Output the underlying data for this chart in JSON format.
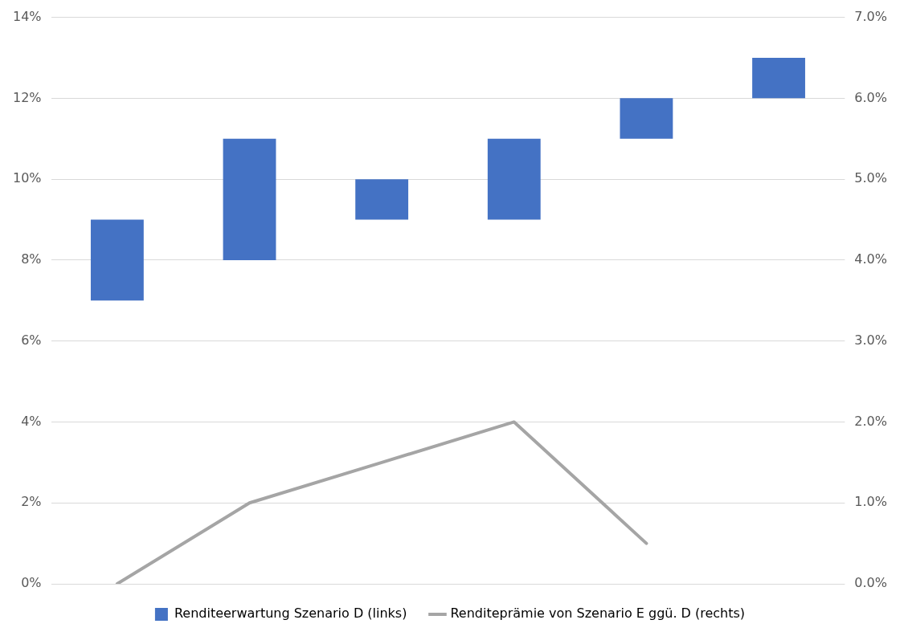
{
  "chart_data": {
    "type": "bar",
    "categories": [
      null,
      null,
      null,
      null,
      null,
      null
    ],
    "series": [
      {
        "name": "Renditeerwartung Szenario D (links)",
        "color": "#4472c4",
        "values": [
          2,
          3,
          1,
          2,
          1,
          1
        ],
        "base": [
          7,
          8,
          9,
          9,
          11,
          12
        ]
      },
      {
        "name": "Renditeprämie von Szenario E ggü. D (rechts)",
        "type": "line",
        "axis": "y2",
        "color": "#a5a5a5",
        "values": [
          0,
          1.0,
          1.5,
          2.0,
          0.5,
          null
        ]
      }
    ],
    "ylim": [
      0,
      14
    ],
    "yticks": [
      {
        "value": 0,
        "label": "0%"
      },
      {
        "value": 2,
        "label": "2%"
      },
      {
        "value": 4,
        "label": "4%"
      },
      {
        "value": 6,
        "label": "6%"
      },
      {
        "value": 8,
        "label": "8%"
      },
      {
        "value": 10,
        "label": "10%"
      },
      {
        "value": 12,
        "label": "12%"
      },
      {
        "value": 14,
        "label": "14%"
      }
    ],
    "y2lim": [
      0,
      7
    ],
    "y2ticks": [
      {
        "value": 0,
        "label": "0.0%"
      },
      {
        "value": 1,
        "label": "1.0%"
      },
      {
        "value": 2,
        "label": "2.0%"
      },
      {
        "value": 3,
        "label": "3.0%"
      },
      {
        "value": 4,
        "label": "4.0%"
      },
      {
        "value": 5,
        "label": "5.0%"
      },
      {
        "value": 6,
        "label": "6.0%"
      },
      {
        "value": 7,
        "label": "7.0%"
      }
    ],
    "grid": "y",
    "legend": "bottom",
    "marker": "none",
    "line_style": "solid"
  }
}
